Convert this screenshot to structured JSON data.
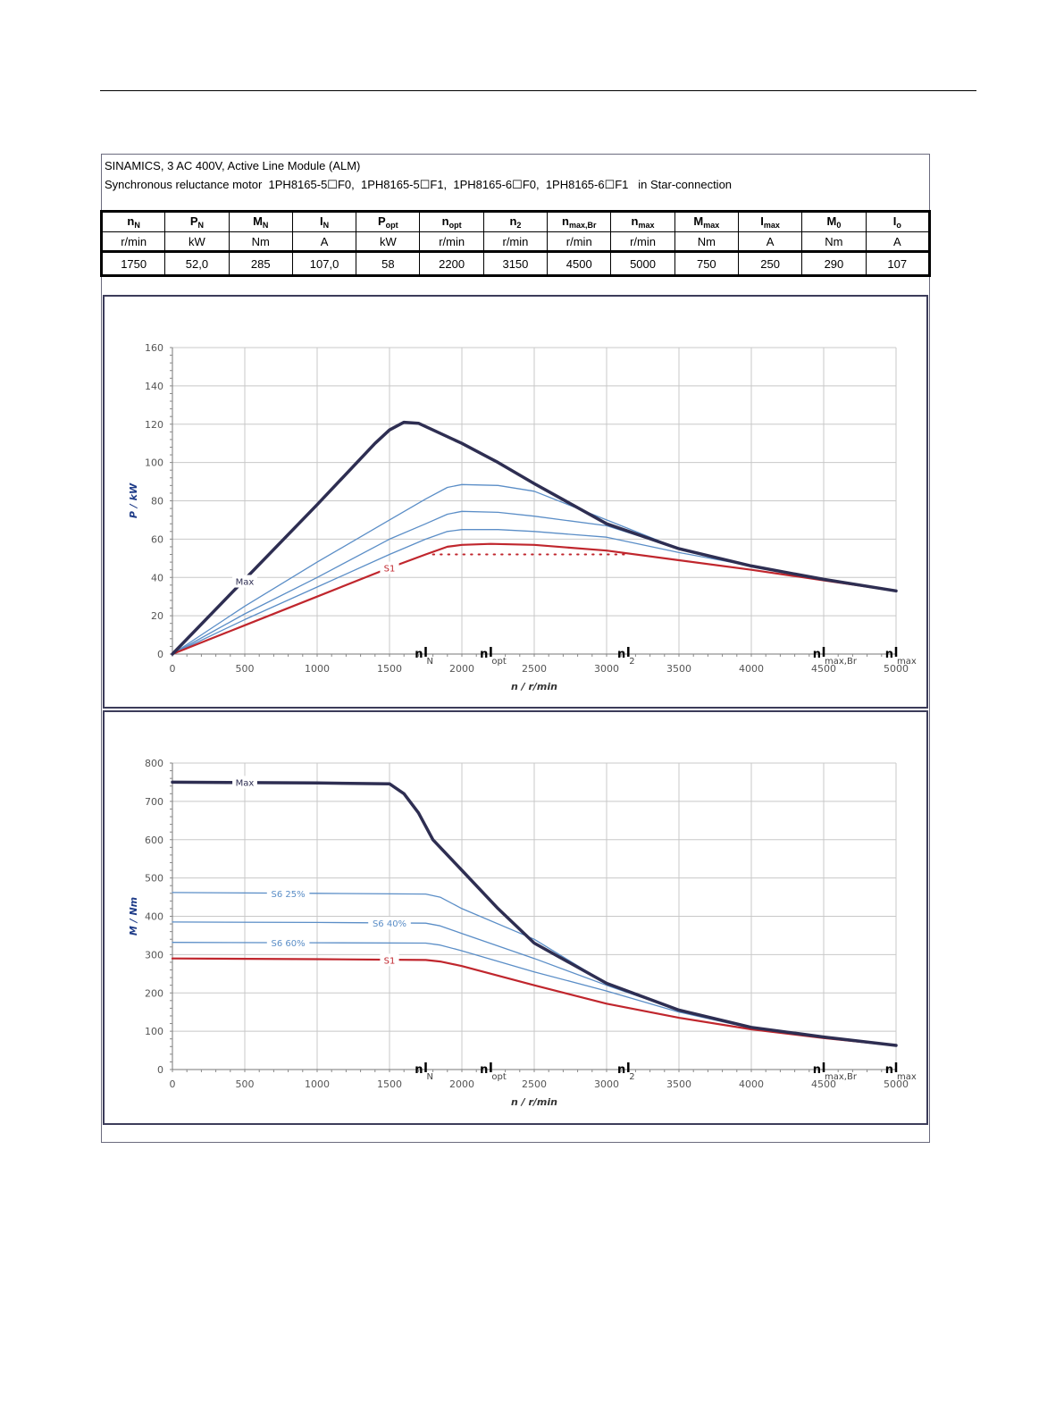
{
  "header": {
    "line1": "SINAMICS, 3 AC 400V, Active Line Module (ALM)",
    "line2": "Synchronous reluctance motor  1PH8165-5☐F0,  1PH8165-5☐F1,  1PH8165-6☐F0,  1PH8165-6☐F1   in Star-connection"
  },
  "spec_table": {
    "columns": [
      {
        "sym": "n",
        "sub": "N",
        "unit": "r/min",
        "value": "1750"
      },
      {
        "sym": "P",
        "sub": "N",
        "unit": "kW",
        "value": "52,0"
      },
      {
        "sym": "M",
        "sub": "N",
        "unit": "Nm",
        "value": "285"
      },
      {
        "sym": "I",
        "sub": "N",
        "unit": "A",
        "value": "107,0"
      },
      {
        "sym": "P",
        "sub": "opt",
        "unit": "kW",
        "value": "58"
      },
      {
        "sym": "n",
        "sub": "opt",
        "unit": "r/min",
        "value": "2200"
      },
      {
        "sym": "n",
        "sub": "2",
        "unit": "r/min",
        "value": "3150"
      },
      {
        "sym": "n",
        "sub": "max,Br",
        "unit": "r/min",
        "value": "4500"
      },
      {
        "sym": "n",
        "sub": "max",
        "unit": "r/min",
        "value": "5000"
      },
      {
        "sym": "M",
        "sub": "max",
        "unit": "Nm",
        "value": "750"
      },
      {
        "sym": "I",
        "sub": "max",
        "unit": "A",
        "value": "250"
      },
      {
        "sym": "M",
        "sub": "0",
        "unit": "Nm",
        "value": "290"
      },
      {
        "sym": "I",
        "sub": "o",
        "unit": "A",
        "value": "107"
      }
    ]
  },
  "chart_data": [
    {
      "type": "line",
      "xlabel": "n / r/min",
      "ylabel": "P / kW",
      "xlim": [
        0,
        5000
      ],
      "ylim": [
        0,
        160
      ],
      "xticks": [
        0,
        500,
        1000,
        1500,
        2000,
        2500,
        3000,
        3500,
        4000,
        4500,
        5000
      ],
      "yticks": [
        0,
        20,
        40,
        60,
        80,
        100,
        120,
        140,
        160
      ],
      "grid": true,
      "markers": [
        {
          "sym": "n",
          "sub": "N",
          "x": 1750
        },
        {
          "sym": "n",
          "sub": "opt",
          "x": 2200
        },
        {
          "sym": "n",
          "sub": "2",
          "x": 3150
        },
        {
          "sym": "n",
          "sub": "max,Br",
          "x": 4500
        },
        {
          "sym": "n",
          "sub": "max",
          "x": 5000
        }
      ],
      "series": [
        {
          "name": "Max",
          "color": "#2e2e52",
          "width": 3.5,
          "label_at": [
            500,
            38
          ],
          "points": [
            [
              0,
              0
            ],
            [
              1000,
              78
            ],
            [
              1400,
              110
            ],
            [
              1500,
              117
            ],
            [
              1600,
              121
            ],
            [
              1700,
              120.5
            ],
            [
              1800,
              117
            ],
            [
              2000,
              110
            ],
            [
              2250,
              100
            ],
            [
              2500,
              89
            ],
            [
              3000,
              68
            ],
            [
              3500,
              55
            ],
            [
              4000,
              46
            ],
            [
              4500,
              39
            ],
            [
              5000,
              33
            ]
          ]
        },
        {
          "name": "",
          "color": "#5b8ec7",
          "width": 1.3,
          "points": [
            [
              0,
              0
            ],
            [
              500,
              25
            ],
            [
              1000,
              48
            ],
            [
              1500,
              70
            ],
            [
              1750,
              81
            ],
            [
              1900,
              87
            ],
            [
              2000,
              88.5
            ],
            [
              2250,
              88
            ],
            [
              2500,
              85
            ],
            [
              3000,
              70
            ],
            [
              3500,
              55
            ],
            [
              4000,
              46
            ],
            [
              4500,
              39
            ],
            [
              5000,
              33
            ]
          ]
        },
        {
          "name": "",
          "color": "#5b8ec7",
          "width": 1.3,
          "points": [
            [
              0,
              0
            ],
            [
              500,
              21
            ],
            [
              1000,
              40
            ],
            [
              1500,
              60
            ],
            [
              1750,
              68
            ],
            [
              1900,
              73
            ],
            [
              2000,
              74.5
            ],
            [
              2250,
              74
            ],
            [
              2500,
              72
            ],
            [
              3000,
              67
            ],
            [
              3500,
              55
            ],
            [
              4000,
              46
            ],
            [
              4500,
              39
            ],
            [
              5000,
              33
            ]
          ]
        },
        {
          "name": "",
          "color": "#5b8ec7",
          "width": 1.3,
          "points": [
            [
              0,
              0
            ],
            [
              500,
              18
            ],
            [
              1000,
              35
            ],
            [
              1500,
              52
            ],
            [
              1750,
              60
            ],
            [
              1900,
              64
            ],
            [
              2000,
              65
            ],
            [
              2250,
              65
            ],
            [
              2500,
              64
            ],
            [
              3000,
              61
            ],
            [
              3500,
              53
            ],
            [
              4000,
              46
            ],
            [
              4500,
              39
            ],
            [
              5000,
              33
            ]
          ]
        },
        {
          "name": "S1",
          "color": "#c0262d",
          "width": 2.2,
          "label_at": [
            1500,
            45
          ],
          "points": [
            [
              0,
              0
            ],
            [
              500,
              15
            ],
            [
              1000,
              30
            ],
            [
              1500,
              45
            ],
            [
              1750,
              52
            ],
            [
              1900,
              56
            ],
            [
              2000,
              57
            ],
            [
              2200,
              57.5
            ],
            [
              2500,
              57
            ],
            [
              3000,
              54
            ],
            [
              3500,
              49
            ],
            [
              4000,
              44
            ],
            [
              4500,
              38.5
            ],
            [
              5000,
              33
            ]
          ]
        }
      ],
      "reference_line": {
        "y": 52,
        "x": [
          1800,
          3150
        ],
        "color": "#c0262d",
        "style": "dotted"
      }
    },
    {
      "type": "line",
      "xlabel": "n / r/min",
      "ylabel": "M / Nm",
      "xlim": [
        0,
        5000
      ],
      "ylim": [
        0,
        800
      ],
      "xticks": [
        0,
        500,
        1000,
        1500,
        2000,
        2500,
        3000,
        3500,
        4000,
        4500,
        5000
      ],
      "yticks": [
        0,
        100,
        200,
        300,
        400,
        500,
        600,
        700,
        800
      ],
      "grid": true,
      "markers": [
        {
          "sym": "n",
          "sub": "N",
          "x": 1750
        },
        {
          "sym": "n",
          "sub": "opt",
          "x": 2200
        },
        {
          "sym": "n",
          "sub": "2",
          "x": 3150
        },
        {
          "sym": "n",
          "sub": "max,Br",
          "x": 4500
        },
        {
          "sym": "n",
          "sub": "max",
          "x": 5000
        }
      ],
      "series": [
        {
          "name": "Max",
          "color": "#2e2e52",
          "width": 3.5,
          "label_at": [
            500,
            750
          ],
          "points": [
            [
              0,
              750
            ],
            [
              1000,
              748
            ],
            [
              1500,
              746
            ],
            [
              1600,
              720
            ],
            [
              1700,
              670
            ],
            [
              1800,
              600
            ],
            [
              2000,
              520
            ],
            [
              2250,
              420
            ],
            [
              2500,
              330
            ],
            [
              3000,
              225
            ],
            [
              3500,
              155
            ],
            [
              4000,
              110
            ],
            [
              4500,
              85
            ],
            [
              5000,
              63
            ]
          ]
        },
        {
          "name": "S6 25%",
          "color": "#5b8ec7",
          "width": 1.3,
          "label_at": [
            800,
            460
          ],
          "points": [
            [
              0,
              462
            ],
            [
              1000,
              460
            ],
            [
              1750,
              458
            ],
            [
              1850,
              450
            ],
            [
              2000,
              420
            ],
            [
              2500,
              340
            ],
            [
              3000,
              225
            ],
            [
              3500,
              155
            ],
            [
              4000,
              110
            ],
            [
              4500,
              85
            ],
            [
              5000,
              63
            ]
          ]
        },
        {
          "name": "S6 40%",
          "color": "#5b8ec7",
          "width": 1.3,
          "label_at": [
            1500,
            382
          ],
          "points": [
            [
              0,
              385
            ],
            [
              1000,
              384
            ],
            [
              1750,
              382
            ],
            [
              1850,
              375
            ],
            [
              2000,
              355
            ],
            [
              2500,
              290
            ],
            [
              3000,
              220
            ],
            [
              3500,
              155
            ],
            [
              4000,
              110
            ],
            [
              4500,
              85
            ],
            [
              5000,
              63
            ]
          ]
        },
        {
          "name": "S6 60%",
          "color": "#5b8ec7",
          "width": 1.3,
          "label_at": [
            800,
            331
          ],
          "points": [
            [
              0,
              332
            ],
            [
              1000,
              331
            ],
            [
              1750,
              330
            ],
            [
              1850,
              325
            ],
            [
              2000,
              310
            ],
            [
              2500,
              255
            ],
            [
              3000,
              205
            ],
            [
              3500,
              150
            ],
            [
              4000,
              108
            ],
            [
              4500,
              84
            ],
            [
              5000,
              63
            ]
          ]
        },
        {
          "name": "S1",
          "color": "#c0262d",
          "width": 2.2,
          "label_at": [
            1500,
            286
          ],
          "points": [
            [
              0,
              290
            ],
            [
              1000,
              288
            ],
            [
              1750,
              286
            ],
            [
              1850,
              282
            ],
            [
              2000,
              270
            ],
            [
              2500,
              220
            ],
            [
              3000,
              172
            ],
            [
              3500,
              135
            ],
            [
              4000,
              105
            ],
            [
              4500,
              82
            ],
            [
              5000,
              63
            ]
          ]
        }
      ]
    }
  ]
}
